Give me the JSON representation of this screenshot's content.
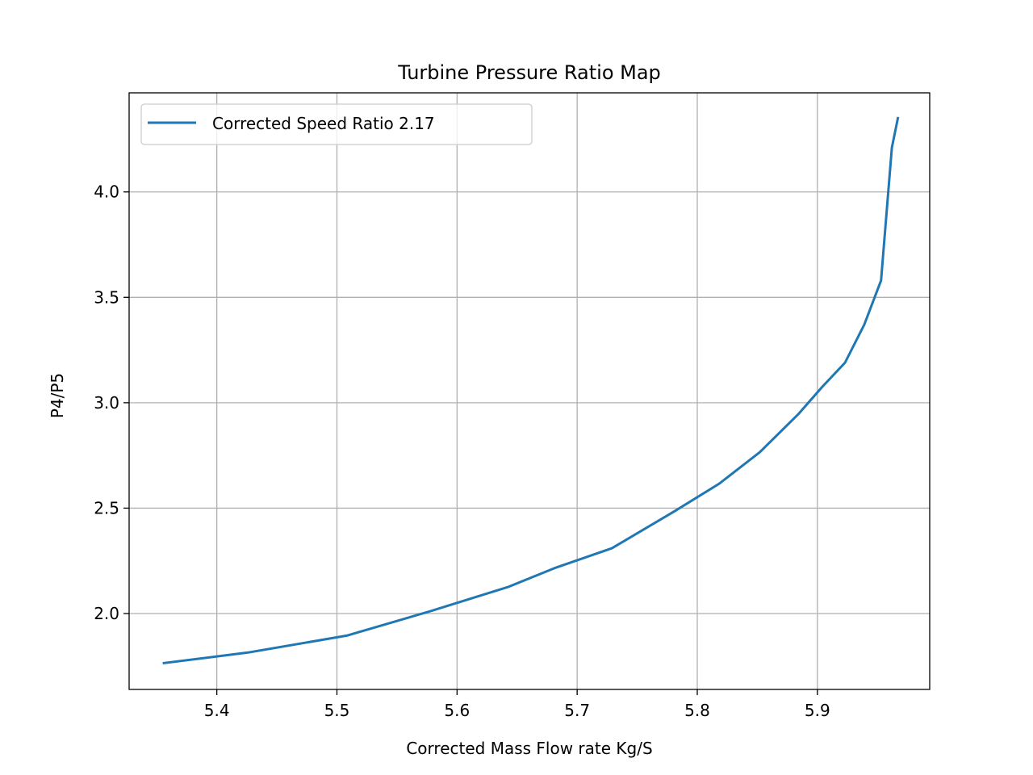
{
  "chart_data": {
    "type": "line",
    "title": "Turbine Pressure Ratio Map",
    "xlabel": "Corrected Mass Flow rate Kg/S",
    "ylabel": "P4/P5",
    "xlim": [
      5.327,
      5.9935
    ],
    "ylim": [
      1.64,
      4.47
    ],
    "xticks": [
      5.4,
      5.5,
      5.6,
      5.7,
      5.8,
      5.9
    ],
    "xtick_labels": [
      "5.4",
      "5.5",
      "5.6",
      "5.7",
      "5.8",
      "5.9"
    ],
    "yticks": [
      2.0,
      2.5,
      3.0,
      3.5,
      4.0
    ],
    "ytick_labels": [
      "2.0",
      "2.5",
      "3.0",
      "3.5",
      "4.0"
    ],
    "grid": true,
    "legend_position": "top-left",
    "series": [
      {
        "name": "Corrected Speed Ratio 2.17",
        "color": "#1f77b4",
        "x": [
          5.356,
          5.426,
          5.508,
          5.577,
          5.642,
          5.681,
          5.729,
          5.781,
          5.818,
          5.852,
          5.884,
          5.904,
          5.923,
          5.939,
          5.953,
          5.962,
          5.967
        ],
        "y": [
          1.765,
          1.815,
          1.895,
          2.01,
          2.125,
          2.215,
          2.31,
          2.485,
          2.615,
          2.765,
          2.945,
          3.075,
          3.19,
          3.37,
          3.58,
          4.21,
          4.35
        ]
      }
    ]
  }
}
